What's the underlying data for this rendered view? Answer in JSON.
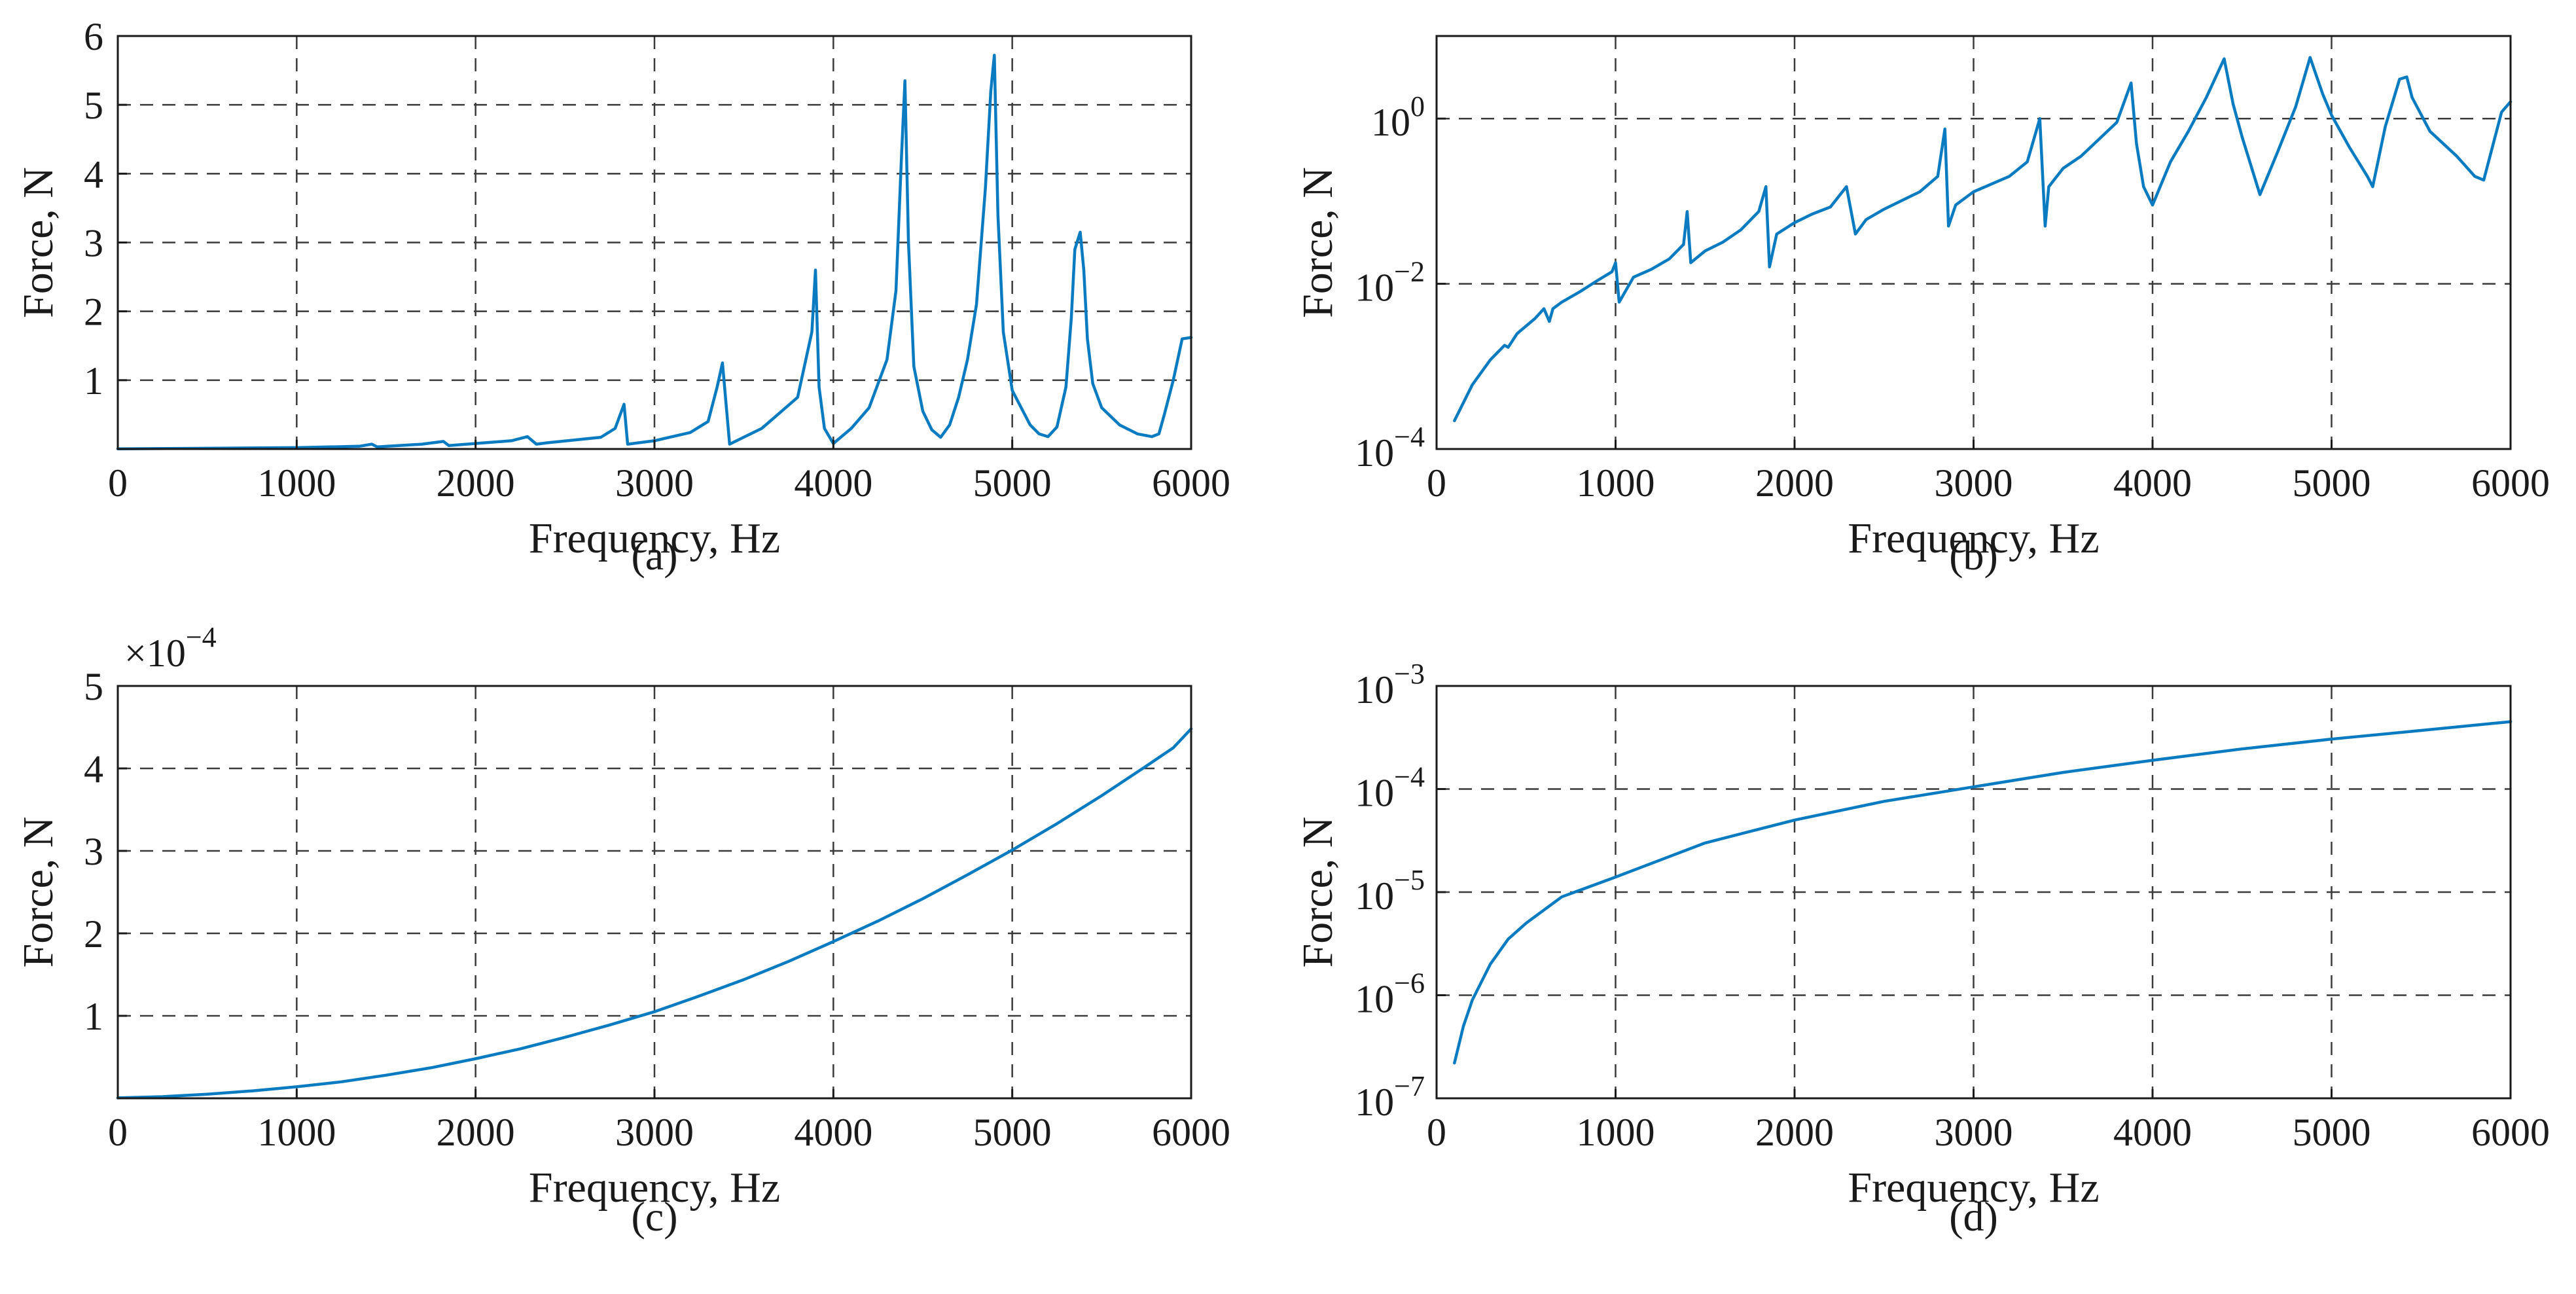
{
  "figure": {
    "line_color": "#0b7bc1"
  },
  "chart_data": [
    {
      "id": "a",
      "type": "line",
      "caption": "(a)",
      "xlabel": "Frequency, Hz",
      "ylabel": "Force, N",
      "yscale": "linear",
      "xlim": [
        0,
        6000
      ],
      "ylim": [
        0,
        6
      ],
      "xticks": [
        0,
        1000,
        2000,
        3000,
        4000,
        5000,
        6000
      ],
      "xtick_labels": [
        "0",
        "1000",
        "2000",
        "3000",
        "4000",
        "5000",
        "6000"
      ],
      "yticks": [
        1,
        2,
        3,
        4,
        5,
        6
      ],
      "ytick_labels": [
        "1",
        "2",
        "3",
        "4",
        "5",
        "6"
      ],
      "grid": true,
      "series": [
        {
          "name": "Force",
          "x": [
            0,
            500,
            1000,
            1350,
            1420,
            1450,
            1700,
            1820,
            1850,
            2200,
            2290,
            2340,
            2400,
            2700,
            2780,
            2830,
            2850,
            3000,
            3200,
            3300,
            3350,
            3380,
            3420,
            3600,
            3800,
            3880,
            3900,
            3920,
            3950,
            4000,
            4100,
            4200,
            4300,
            4350,
            4380,
            4400,
            4420,
            4450,
            4500,
            4550,
            4600,
            4650,
            4700,
            4750,
            4800,
            4850,
            4880,
            4900,
            4920,
            4950,
            5000,
            5100,
            5150,
            5200,
            5250,
            5300,
            5330,
            5350,
            5380,
            5400,
            5420,
            5450,
            5500,
            5600,
            5700,
            5780,
            5820,
            5850,
            5900,
            5950,
            6000
          ],
          "y": [
            0.003,
            0.01,
            0.02,
            0.04,
            0.07,
            0.03,
            0.07,
            0.11,
            0.05,
            0.12,
            0.18,
            0.07,
            0.09,
            0.17,
            0.3,
            0.65,
            0.07,
            0.12,
            0.24,
            0.4,
            0.9,
            1.25,
            0.07,
            0.3,
            0.75,
            1.7,
            2.6,
            0.9,
            0.3,
            0.08,
            0.3,
            0.6,
            1.3,
            2.3,
            4.2,
            5.35,
            3.0,
            1.2,
            0.55,
            0.28,
            0.17,
            0.35,
            0.75,
            1.3,
            2.1,
            3.8,
            5.2,
            5.72,
            3.4,
            1.7,
            0.85,
            0.35,
            0.22,
            0.18,
            0.32,
            0.9,
            1.9,
            2.9,
            3.15,
            2.6,
            1.6,
            0.95,
            0.6,
            0.35,
            0.22,
            0.18,
            0.22,
            0.5,
            1.0,
            1.6,
            1.62
          ]
        }
      ]
    },
    {
      "id": "b",
      "type": "line",
      "caption": "(b)",
      "xlabel": "Frequency, Hz",
      "ylabel": "Force, N",
      "yscale": "log",
      "xlim": [
        0,
        6000
      ],
      "ylim": [
        0.0001,
        10
      ],
      "xticks": [
        0,
        1000,
        2000,
        3000,
        4000,
        5000,
        6000
      ],
      "xtick_labels": [
        "0",
        "1000",
        "2000",
        "3000",
        "4000",
        "5000",
        "6000"
      ],
      "yticks": [
        0.0001,
        0.01,
        1
      ],
      "ytick_bases": [
        "10",
        "10",
        "10"
      ],
      "ytick_exponents": [
        "−4",
        "−2",
        "0"
      ],
      "grid": true,
      "series": [
        {
          "name": "Force",
          "x": [
            100,
            200,
            300,
            380,
            400,
            450,
            550,
            600,
            630,
            650,
            700,
            800,
            900,
            980,
            1000,
            1020,
            1100,
            1200,
            1300,
            1380,
            1400,
            1420,
            1500,
            1600,
            1700,
            1800,
            1840,
            1860,
            1900,
            2000,
            2100,
            2200,
            2290,
            2340,
            2400,
            2500,
            2700,
            2800,
            2840,
            2860,
            2900,
            3000,
            3200,
            3300,
            3370,
            3400,
            3420,
            3500,
            3600,
            3800,
            3880,
            3910,
            3950,
            4000,
            4100,
            4200,
            4300,
            4400,
            4450,
            4500,
            4600,
            4700,
            4800,
            4880,
            4950,
            5000,
            5100,
            5200,
            5230,
            5300,
            5380,
            5420,
            5450,
            5550,
            5700,
            5800,
            5850,
            5950,
            6000
          ],
          "y": [
            0.00022,
            0.0006,
            0.0012,
            0.0018,
            0.0017,
            0.0025,
            0.0038,
            0.005,
            0.0035,
            0.005,
            0.006,
            0.008,
            0.011,
            0.014,
            0.018,
            0.006,
            0.012,
            0.015,
            0.02,
            0.03,
            0.075,
            0.018,
            0.025,
            0.032,
            0.045,
            0.075,
            0.15,
            0.016,
            0.04,
            0.055,
            0.07,
            0.085,
            0.15,
            0.04,
            0.06,
            0.08,
            0.13,
            0.2,
            0.75,
            0.05,
            0.09,
            0.13,
            0.2,
            0.3,
            1.0,
            0.05,
            0.15,
            0.25,
            0.35,
            0.9,
            2.7,
            0.5,
            0.15,
            0.09,
            0.3,
            0.7,
            1.8,
            5.3,
            1.5,
            0.6,
            0.12,
            0.4,
            1.4,
            5.5,
            2.0,
            1.1,
            0.45,
            0.2,
            0.15,
            0.8,
            3.0,
            3.2,
            1.8,
            0.7,
            0.35,
            0.2,
            0.18,
            1.2,
            1.6
          ]
        }
      ]
    },
    {
      "id": "c",
      "type": "line",
      "caption": "(c)",
      "xlabel": "Frequency, Hz",
      "ylabel": "Force, N",
      "yscale": "linear",
      "multiplier": "×10",
      "multiplier_exponent": "−4",
      "xlim": [
        0,
        6000
      ],
      "ylim": [
        0,
        5
      ],
      "xticks": [
        0,
        1000,
        2000,
        3000,
        4000,
        5000,
        6000
      ],
      "xtick_labels": [
        "0",
        "1000",
        "2000",
        "3000",
        "4000",
        "5000",
        "6000"
      ],
      "yticks": [
        1,
        2,
        3,
        4,
        5
      ],
      "ytick_labels": [
        "1",
        "2",
        "3",
        "4",
        "5"
      ],
      "grid": true,
      "series": [
        {
          "name": "Force",
          "x": [
            0,
            250,
            500,
            750,
            1000,
            1250,
            1500,
            1750,
            2000,
            2250,
            2500,
            2750,
            3000,
            3250,
            3500,
            3750,
            4000,
            4250,
            4500,
            4750,
            5000,
            5250,
            5500,
            5750,
            5900,
            6000
          ],
          "y": [
            0.005,
            0.02,
            0.05,
            0.09,
            0.14,
            0.2,
            0.28,
            0.37,
            0.48,
            0.6,
            0.74,
            0.89,
            1.05,
            1.24,
            1.44,
            1.66,
            1.9,
            2.15,
            2.42,
            2.71,
            3.01,
            3.33,
            3.67,
            4.03,
            4.25,
            4.48
          ]
        }
      ]
    },
    {
      "id": "d",
      "type": "line",
      "caption": "(d)",
      "xlabel": "Frequency, Hz",
      "ylabel": "Force, N",
      "yscale": "log",
      "xlim": [
        0,
        6000
      ],
      "ylim": [
        1e-07,
        0.001
      ],
      "xticks": [
        0,
        1000,
        2000,
        3000,
        4000,
        5000,
        6000
      ],
      "xtick_labels": [
        "0",
        "1000",
        "2000",
        "3000",
        "4000",
        "5000",
        "6000"
      ],
      "yticks": [
        1e-07,
        1e-06,
        1e-05,
        0.0001,
        0.001
      ],
      "ytick_bases": [
        "10",
        "10",
        "10",
        "10",
        "10"
      ],
      "ytick_exponents": [
        "−7",
        "−6",
        "−5",
        "−4",
        "−3"
      ],
      "grid": true,
      "series": [
        {
          "name": "Force",
          "x": [
            100,
            150,
            200,
            300,
            400,
            500,
            700,
            1000,
            1500,
            2000,
            2500,
            3000,
            3500,
            4000,
            4500,
            5000,
            5500,
            6000
          ],
          "y": [
            2.2e-07,
            5e-07,
            9e-07,
            2e-06,
            3.5e-06,
            5e-06,
            9e-06,
            1.4e-05,
            3e-05,
            5e-05,
            7.6e-05,
            0.000105,
            0.000145,
            0.00019,
            0.000245,
            0.000305,
            0.00037,
            0.00045
          ]
        }
      ]
    }
  ]
}
